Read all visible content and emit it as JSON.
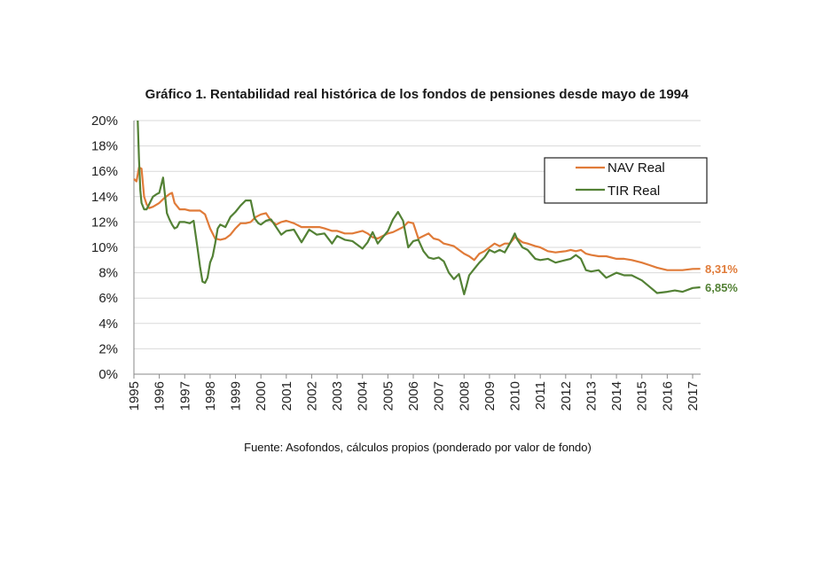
{
  "chart_data": {
    "type": "line",
    "title": "Gráfico 1. Rentabilidad real histórica de los fondos de pensiones desde mayo de 1994",
    "source": "Fuente: Asofondos, cálculos propios (ponderado por valor de fondo)",
    "xlabel": "",
    "ylabel": "",
    "xlim": [
      1995,
      2017.3
    ],
    "ylim": [
      0,
      20
    ],
    "grid": true,
    "legend_position": "top-right",
    "x_tick_labels": [
      "1995",
      "1996",
      "1997",
      "1998",
      "1999",
      "2000",
      "2001",
      "2002",
      "2003",
      "2004",
      "2005",
      "2006",
      "2007",
      "2008",
      "2009",
      "2010",
      "2011",
      "2012",
      "2013",
      "2014",
      "2015",
      "2016",
      "2017"
    ],
    "y_tick_labels": [
      "0%",
      "2%",
      "4%",
      "6%",
      "8%",
      "10%",
      "12%",
      "14%",
      "16%",
      "18%",
      "20%"
    ],
    "y_ticks": [
      0,
      2,
      4,
      6,
      8,
      10,
      12,
      14,
      16,
      18,
      20
    ],
    "series": [
      {
        "name": "NAV Real",
        "color": "#e07b39",
        "end_label": "8,31%",
        "x": [
          1995.0,
          1995.1,
          1995.2,
          1995.3,
          1995.4,
          1995.5,
          1995.6,
          1995.75,
          1996.0,
          1996.2,
          1996.4,
          1996.5,
          1996.6,
          1996.8,
          1997.0,
          1997.2,
          1997.4,
          1997.6,
          1997.8,
          1998.0,
          1998.2,
          1998.4,
          1998.6,
          1998.8,
          1999.0,
          1999.2,
          1999.4,
          1999.6,
          1999.8,
          2000.0,
          2000.2,
          2000.4,
          2000.6,
          2000.8,
          2001.0,
          2001.3,
          2001.6,
          2002.0,
          2002.3,
          2002.5,
          2002.8,
          2003.0,
          2003.3,
          2003.6,
          2004.0,
          2004.2,
          2004.4,
          2004.6,
          2004.8,
          2005.0,
          2005.2,
          2005.4,
          2005.6,
          2005.8,
          2006.0,
          2006.2,
          2006.4,
          2006.6,
          2006.8,
          2007.0,
          2007.2,
          2007.4,
          2007.6,
          2007.8,
          2008.0,
          2008.2,
          2008.4,
          2008.6,
          2008.8,
          2009.0,
          2009.2,
          2009.4,
          2009.6,
          2009.8,
          2010.0,
          2010.1,
          2010.3,
          2010.5,
          2010.8,
          2011.0,
          2011.3,
          2011.6,
          2012.0,
          2012.2,
          2012.4,
          2012.6,
          2012.8,
          2013.0,
          2013.3,
          2013.6,
          2014.0,
          2014.3,
          2014.6,
          2015.0,
          2015.3,
          2015.6,
          2016.0,
          2016.3,
          2016.6,
          2017.0,
          2017.3
        ],
        "y": [
          15.4,
          15.2,
          16.3,
          16.2,
          14.0,
          13.4,
          13.1,
          13.2,
          13.5,
          13.9,
          14.2,
          14.3,
          13.5,
          13.0,
          13.0,
          12.9,
          12.9,
          12.9,
          12.6,
          11.5,
          10.7,
          10.6,
          10.7,
          11.0,
          11.5,
          11.9,
          11.9,
          12.0,
          12.4,
          12.6,
          12.7,
          12.1,
          11.8,
          12.0,
          12.1,
          11.9,
          11.6,
          11.6,
          11.6,
          11.5,
          11.3,
          11.3,
          11.1,
          11.1,
          11.3,
          11.1,
          10.8,
          10.7,
          10.9,
          11.1,
          11.2,
          11.4,
          11.6,
          12.0,
          11.9,
          10.7,
          10.9,
          11.1,
          10.7,
          10.6,
          10.3,
          10.2,
          10.1,
          9.8,
          9.5,
          9.3,
          9.0,
          9.5,
          9.7,
          10.0,
          10.3,
          10.1,
          10.3,
          10.3,
          10.8,
          10.7,
          10.4,
          10.3,
          10.1,
          10.0,
          9.7,
          9.6,
          9.7,
          9.8,
          9.7,
          9.8,
          9.5,
          9.4,
          9.3,
          9.3,
          9.1,
          9.1,
          9.0,
          8.8,
          8.6,
          8.4,
          8.2,
          8.2,
          8.2,
          8.3,
          8.31
        ]
      },
      {
        "name": "TIR Real",
        "color": "#538135",
        "end_label": "6,85%",
        "x": [
          1995.15,
          1995.2,
          1995.25,
          1995.3,
          1995.4,
          1995.5,
          1995.6,
          1995.75,
          1995.9,
          1996.0,
          1996.15,
          1996.3,
          1996.4,
          1996.5,
          1996.6,
          1996.7,
          1996.8,
          1997.0,
          1997.2,
          1997.35,
          1997.5,
          1997.6,
          1997.7,
          1997.8,
          1997.9,
          1998.0,
          1998.1,
          1998.2,
          1998.3,
          1998.4,
          1998.6,
          1998.8,
          1999.0,
          1999.2,
          1999.4,
          1999.6,
          1999.75,
          1999.9,
          2000.0,
          2000.2,
          2000.4,
          2000.6,
          2000.8,
          2001.0,
          2001.3,
          2001.6,
          2001.9,
          2002.2,
          2002.5,
          2002.8,
          2003.0,
          2003.3,
          2003.6,
          2004.0,
          2004.2,
          2004.4,
          2004.6,
          2004.8,
          2005.0,
          2005.2,
          2005.4,
          2005.6,
          2005.8,
          2006.0,
          2006.2,
          2006.4,
          2006.6,
          2006.8,
          2007.0,
          2007.2,
          2007.4,
          2007.6,
          2007.8,
          2008.0,
          2008.1,
          2008.2,
          2008.4,
          2008.6,
          2008.8,
          2009.0,
          2009.2,
          2009.4,
          2009.6,
          2009.8,
          2010.0,
          2010.1,
          2010.3,
          2010.5,
          2010.8,
          2011.0,
          2011.3,
          2011.6,
          2012.0,
          2012.2,
          2012.4,
          2012.6,
          2012.8,
          2013.0,
          2013.3,
          2013.6,
          2014.0,
          2014.3,
          2014.6,
          2015.0,
          2015.3,
          2015.6,
          2016.0,
          2016.3,
          2016.6,
          2017.0,
          2017.3
        ],
        "y": [
          20.0,
          17.0,
          14.5,
          13.5,
          13.0,
          13.0,
          13.4,
          14.0,
          14.2,
          14.3,
          15.5,
          12.7,
          12.2,
          11.8,
          11.5,
          11.6,
          12.0,
          12.0,
          11.9,
          12.1,
          10.0,
          8.5,
          7.3,
          7.2,
          7.6,
          8.8,
          9.3,
          10.3,
          11.5,
          11.8,
          11.6,
          12.4,
          12.8,
          13.3,
          13.7,
          13.7,
          12.3,
          11.9,
          11.8,
          12.1,
          12.2,
          11.6,
          11.0,
          11.3,
          11.4,
          10.4,
          11.4,
          11.0,
          11.1,
          10.3,
          10.9,
          10.6,
          10.5,
          9.9,
          10.4,
          11.2,
          10.3,
          10.8,
          11.3,
          12.2,
          12.8,
          12.1,
          10.0,
          10.5,
          10.6,
          9.7,
          9.2,
          9.1,
          9.2,
          8.9,
          8.0,
          7.5,
          7.9,
          6.3,
          7.0,
          7.8,
          8.3,
          8.8,
          9.2,
          9.8,
          9.6,
          9.8,
          9.6,
          10.3,
          11.1,
          10.6,
          10.0,
          9.8,
          9.1,
          9.0,
          9.1,
          8.8,
          9.0,
          9.1,
          9.4,
          9.1,
          8.2,
          8.1,
          8.2,
          7.6,
          8.0,
          7.8,
          7.8,
          7.4,
          6.9,
          6.4,
          6.5,
          6.6,
          6.5,
          6.8,
          6.85
        ]
      }
    ]
  }
}
